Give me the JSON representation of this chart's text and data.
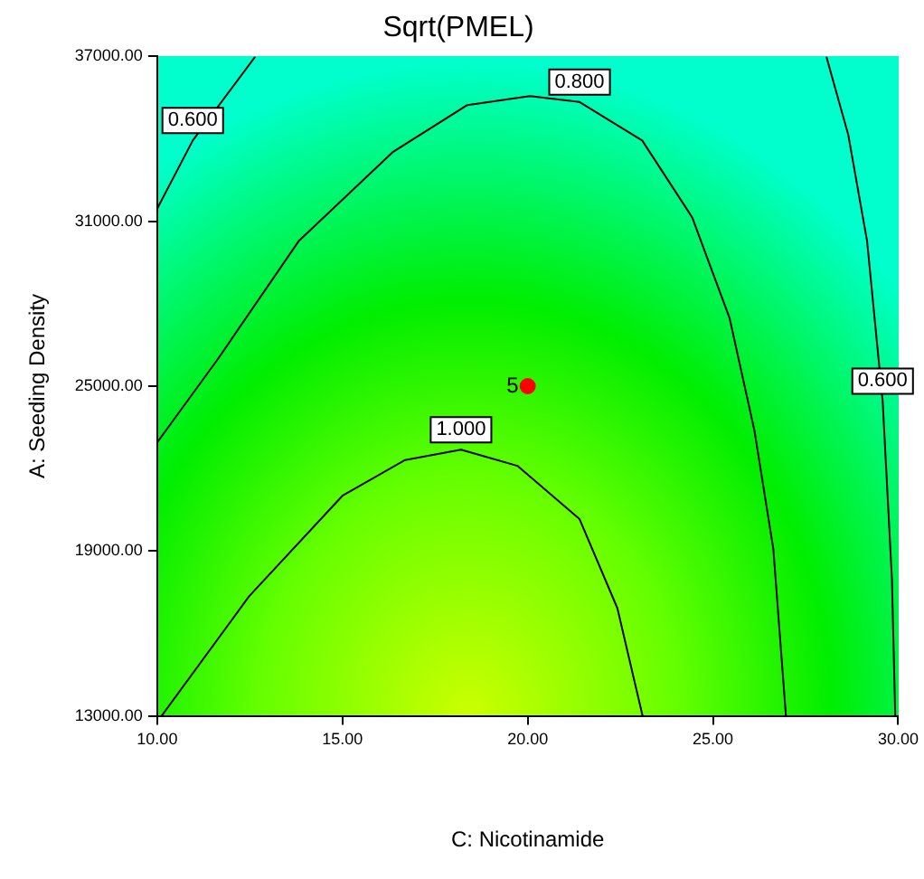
{
  "chart_data": {
    "type": "line",
    "title": "Sqrt(PMEL)",
    "xlabel": "C: Nicotinamide",
    "ylabel": "A: Seeding Density",
    "xlim": [
      10,
      30
    ],
    "ylim": [
      13000,
      37000
    ],
    "xticks": [
      {
        "value": 10,
        "label": "10.00"
      },
      {
        "value": 15,
        "label": "15.00"
      },
      {
        "value": 20,
        "label": "20.00"
      },
      {
        "value": 25,
        "label": "25.00"
      },
      {
        "value": 30,
        "label": "30.00"
      }
    ],
    "yticks": [
      {
        "value": 13000,
        "label": "13000.00"
      },
      {
        "value": 19000,
        "label": "19000.00"
      },
      {
        "value": 25000,
        "label": "25000.00"
      },
      {
        "value": 31000,
        "label": "31000.00"
      },
      {
        "value": 37000,
        "label": "37000.00"
      }
    ],
    "grid": false,
    "legend": false,
    "marker": "none",
    "line_style": "solid",
    "series": [
      {
        "name": "0.600",
        "color": "#000000",
        "x": [
          10,
          10.96,
          12.65
        ],
        "values": [
          31460,
          33940,
          37000
        ]
      },
      {
        "name": "0.800",
        "color": "#000000",
        "x": [
          10,
          11.63,
          13.82,
          16.35,
          18.37,
          20.06,
          21.4,
          23.09,
          24.44,
          25.45,
          26.12,
          26.63,
          26.97
        ],
        "values": [
          22950,
          25970,
          30280,
          33510,
          35230,
          35560,
          35340,
          33940,
          31140,
          27470,
          23380,
          19070,
          13000
        ]
      },
      {
        "name": "1.000",
        "color": "#000000",
        "x": [
          10.12,
          12.48,
          15,
          16.69,
          18.2,
          19.72,
          21.4,
          22.42,
          23.1
        ],
        "values": [
          13000,
          17350,
          21010,
          22310,
          22690,
          22100,
          20160,
          16920,
          13000
        ]
      },
      {
        "name": "0.600",
        "color": "#000000",
        "x": [
          28.06,
          28.65,
          29.16,
          29.58,
          29.83,
          29.92
        ],
        "values": [
          37000,
          34160,
          30280,
          24460,
          18000,
          13000
        ]
      },
      {
        "type": "scatter",
        "color": "#ff0000",
        "marker": "circle",
        "x": [
          20
        ],
        "values": [
          25000
        ]
      }
    ],
    "annotations": [
      {
        "text": "5",
        "x": 20,
        "y": 25000
      }
    ]
  }
}
